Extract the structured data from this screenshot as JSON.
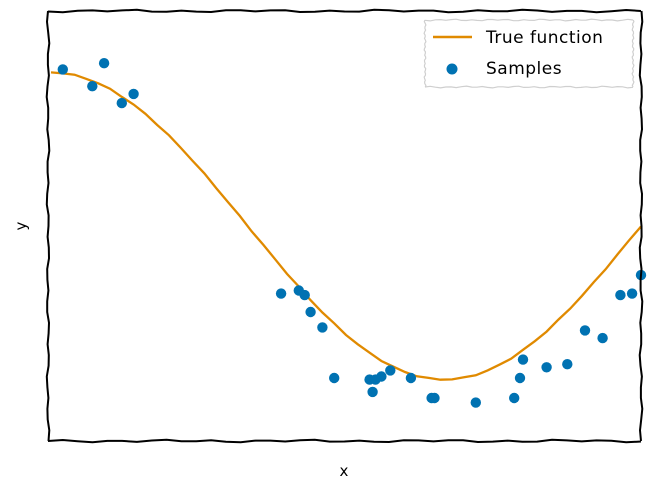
{
  "chart_data": {
    "type": "scatter",
    "xlabel": "x",
    "ylabel": "y",
    "xlim": [
      0,
      1
    ],
    "ylim": [
      -1.4,
      1.4
    ],
    "grid": false,
    "ticks_visible": false,
    "legend": {
      "placement": "top-right",
      "entries": [
        {
          "label": "True function",
          "marker": "line"
        },
        {
          "label": "Samples",
          "marker": "dot"
        }
      ]
    },
    "colors": {
      "true_function": "#E08A00",
      "samples": "#0072B2",
      "axes": "#000000"
    },
    "series": [
      {
        "name": "True function",
        "kind": "line",
        "function": "cos(1.5*pi*x)",
        "x": [
          0.0,
          0.02,
          0.04,
          0.06,
          0.08,
          0.1,
          0.12,
          0.14,
          0.16,
          0.18,
          0.2,
          0.22,
          0.24,
          0.26,
          0.28,
          0.3,
          0.32,
          0.34,
          0.36,
          0.38,
          0.4,
          0.42,
          0.44,
          0.46,
          0.48,
          0.5,
          0.52,
          0.54,
          0.56,
          0.58,
          0.6,
          0.62,
          0.64,
          0.66,
          0.68,
          0.7,
          0.72,
          0.74,
          0.76,
          0.78,
          0.8,
          0.82,
          0.84,
          0.86,
          0.88,
          0.9,
          0.92,
          0.94,
          0.96,
          0.98,
          1.0
        ],
        "y": [
          1.0,
          0.996,
          0.982,
          0.96,
          0.93,
          0.891,
          0.844,
          0.79,
          0.729,
          0.661,
          0.588,
          0.509,
          0.426,
          0.339,
          0.249,
          0.156,
          0.063,
          -0.031,
          -0.125,
          -0.218,
          -0.309,
          -0.397,
          -0.482,
          -0.562,
          -0.637,
          -0.707,
          -0.771,
          -0.827,
          -0.876,
          -0.918,
          -0.951,
          -0.976,
          -0.992,
          -0.999,
          -0.998,
          -0.988,
          -0.969,
          -0.941,
          -0.905,
          -0.861,
          -0.809,
          -0.75,
          -0.685,
          -0.613,
          -0.536,
          -0.454,
          -0.368,
          -0.279,
          -0.187,
          -0.094,
          0.0
        ]
      },
      {
        "name": "Samples",
        "kind": "scatter",
        "x": [
          0.02,
          0.07,
          0.09,
          0.12,
          0.14,
          0.39,
          0.42,
          0.43,
          0.44,
          0.46,
          0.48,
          0.54,
          0.545,
          0.55,
          0.56,
          0.575,
          0.61,
          0.645,
          0.65,
          0.72,
          0.785,
          0.795,
          0.8,
          0.84,
          0.875,
          0.905,
          0.935,
          0.965,
          0.985,
          1.0
        ],
        "y": [
          1.02,
          0.91,
          1.06,
          0.8,
          0.86,
          -0.44,
          -0.42,
          -0.45,
          -0.56,
          -0.66,
          -0.99,
          -1.0,
          -1.08,
          -1.0,
          -0.98,
          -0.94,
          -0.99,
          -1.12,
          -1.12,
          -1.15,
          -1.12,
          -0.99,
          -0.87,
          -0.92,
          -0.9,
          -0.68,
          -0.73,
          -0.45,
          -0.44,
          -0.32
        ]
      }
    ]
  }
}
